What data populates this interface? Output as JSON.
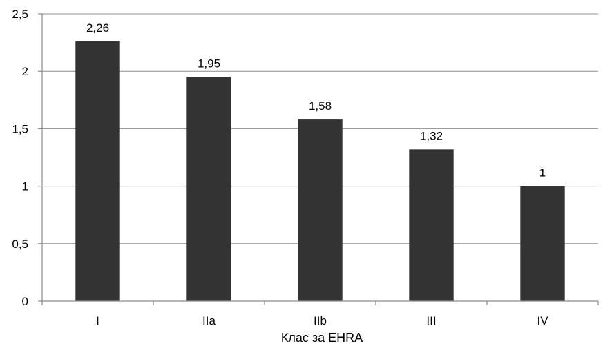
{
  "chart_data": {
    "type": "bar",
    "categories": [
      "I",
      "IIa",
      "IIb",
      "III",
      "IV"
    ],
    "values": [
      2.26,
      1.95,
      1.58,
      1.32,
      1
    ],
    "data_labels": [
      "2,26",
      "1,95",
      "1,58",
      "1,32",
      "1"
    ],
    "title": "",
    "xlabel": "Клас за EHRA",
    "ylabel": "",
    "ylim": [
      0,
      2.5
    ],
    "yticks": [
      0,
      0.5,
      1,
      1.5,
      2,
      2.5
    ],
    "ytick_labels": [
      "0",
      "0,5",
      "1",
      "1,5",
      "2",
      "2,5"
    ],
    "grid": true,
    "legend": "none",
    "bar_color": "#333333"
  }
}
